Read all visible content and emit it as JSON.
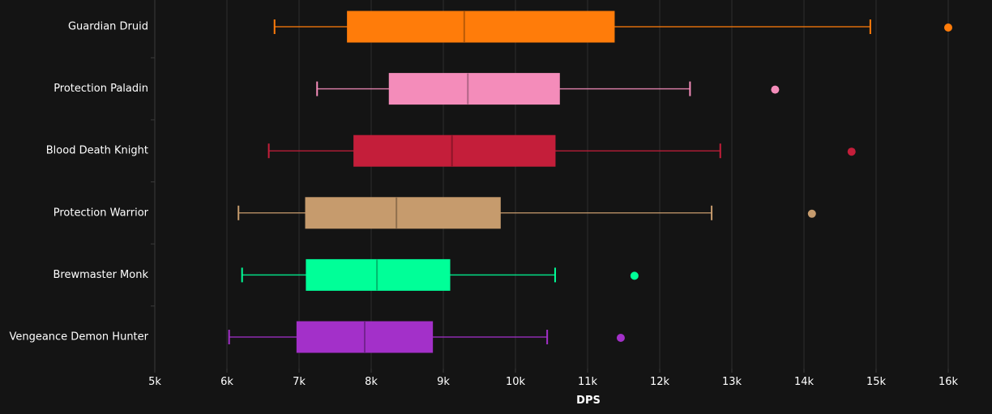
{
  "chart_data": {
    "type": "box",
    "orientation": "horizontal",
    "title": "",
    "xlabel": "DPS",
    "ylabel": "",
    "xlim": [
      5000,
      16000
    ],
    "x_ticks": [
      5000,
      6000,
      7000,
      8000,
      9000,
      10000,
      11000,
      12000,
      13000,
      14000,
      15000,
      16000
    ],
    "x_tick_labels": [
      "5k",
      "6k",
      "7k",
      "8k",
      "9k",
      "10k",
      "11k",
      "12k",
      "13k",
      "14k",
      "15k",
      "16k"
    ],
    "grid": "vertical",
    "legend": "none",
    "series": [
      {
        "name": "Guardian Druid",
        "color": "#FF7C0A",
        "min": 6660,
        "q1": 7670,
        "median": 9290,
        "q3": 11370,
        "max": 14920,
        "outliers": [
          16000
        ]
      },
      {
        "name": "Protection Paladin",
        "color": "#F48CBA",
        "min": 7250,
        "q1": 8250,
        "median": 9340,
        "q3": 10610,
        "max": 12420,
        "outliers": [
          13600
        ]
      },
      {
        "name": "Blood Death Knight",
        "color": "#C41E3A",
        "min": 6580,
        "q1": 7760,
        "median": 9120,
        "q3": 10550,
        "max": 12840,
        "outliers": [
          14660
        ]
      },
      {
        "name": "Protection Warrior",
        "color": "#C69B6D",
        "min": 6160,
        "q1": 7090,
        "median": 8350,
        "q3": 9790,
        "max": 12720,
        "outliers": [
          14110
        ]
      },
      {
        "name": "Brewmaster Monk",
        "color": "#00FF98",
        "min": 6210,
        "q1": 7100,
        "median": 8080,
        "q3": 9090,
        "max": 10550,
        "outliers": [
          11650
        ]
      },
      {
        "name": "Vengeance Demon Hunter",
        "color": "#A330C9",
        "min": 6030,
        "q1": 6970,
        "median": 7910,
        "q3": 8850,
        "max": 10440,
        "outliers": [
          11460
        ]
      }
    ]
  }
}
